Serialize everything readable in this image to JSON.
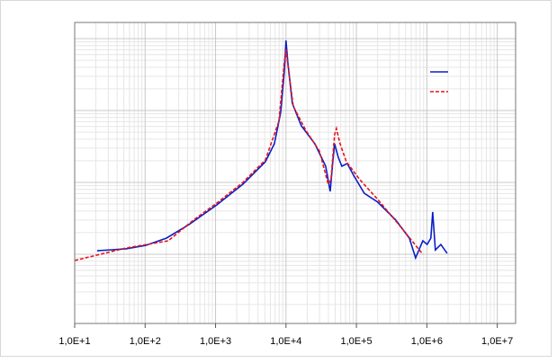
{
  "chart_data": {
    "type": "line",
    "xlog": true,
    "ylog": true,
    "grid": true,
    "xlim": [
      10,
      18200000
    ],
    "ylim": [
      0.109,
      1680
    ],
    "xticks": [
      {
        "value": 10,
        "label": "1,0E+1"
      },
      {
        "value": 100,
        "label": "1,0E+2"
      },
      {
        "value": 1000,
        "label": "1,0E+3"
      },
      {
        "value": 10000,
        "label": "1,0E+4"
      },
      {
        "value": 100000,
        "label": "1,0E+5"
      },
      {
        "value": 1000000,
        "label": "1,0E+6"
      },
      {
        "value": 10000000,
        "label": "1,0E+7"
      }
    ],
    "yticks": [
      1,
      10,
      100,
      1000
    ],
    "series": [
      {
        "color": "#0a1fc8",
        "dash": false,
        "x": [
          20.8,
          53.5,
          102,
          201,
          419,
          1043,
          2444,
          5100,
          6840,
          8410,
          9460,
          10000,
          10640,
          12300,
          16500,
          25700,
          36600,
          42400,
          46200,
          49000,
          55200,
          62100,
          74100,
          91000,
          129000,
          201000,
          362000,
          564000,
          692000,
          877000,
          1010000,
          1140000,
          1210000,
          1320000,
          1580000,
          1940000
        ],
        "values": [
          1.12,
          1.19,
          1.33,
          1.68,
          2.59,
          4.87,
          9.44,
          19.4,
          34.5,
          94.4,
          345,
          944,
          460,
          126,
          61.3,
          34.5,
          16.8,
          7.5,
          19.4,
          34.5,
          22.4,
          16.8,
          18.3,
          12.6,
          7.08,
          5.31,
          2.99,
          1.68,
          0.89,
          1.54,
          1.37,
          1.68,
          3.87,
          1.15,
          1.37,
          1.03
        ]
      },
      {
        "color": "#e8141c",
        "dash": true,
        "x": [
          10,
          53.5,
          213,
          485,
          1043,
          2444,
          5100,
          7930,
          9460,
          10000,
          10960,
          12680,
          19100,
          29800,
          39800,
          43500,
          49000,
          52000,
          58600,
          71900,
          112000,
          201000,
          420000,
          877000
        ],
        "values": [
          0.82,
          1.22,
          1.54,
          2.99,
          5.16,
          10,
          20.5,
          70.8,
          460,
          708,
          345,
          115,
          53.1,
          27.4,
          9.44,
          10.9,
          46,
          56.2,
          34.5,
          19.4,
          10.9,
          5.79,
          2.44,
          1
        ]
      }
    ]
  }
}
